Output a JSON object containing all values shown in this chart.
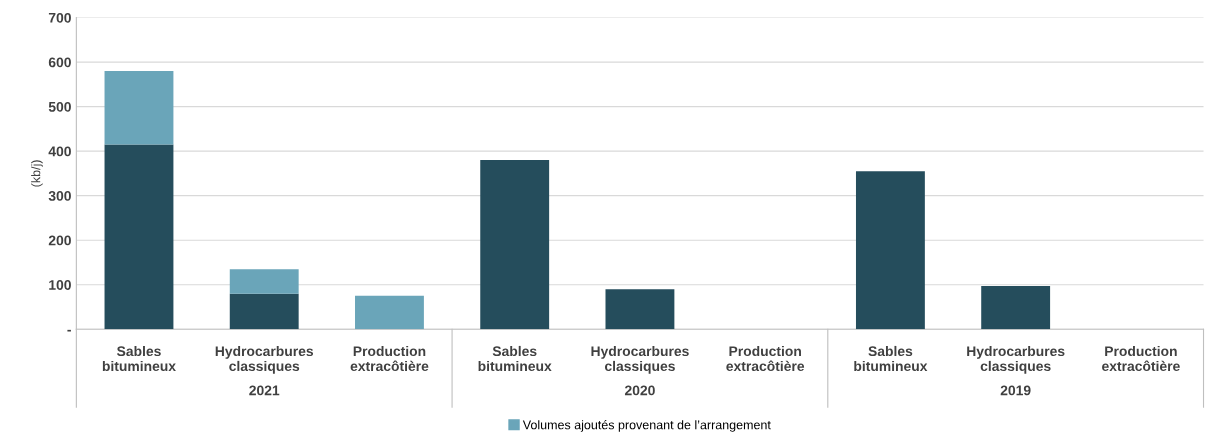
{
  "chart_data": {
    "type": "bar",
    "stacked": true,
    "ylabel": "(kb/j)",
    "categories": [
      "Sables bitumineux",
      "Hydrocarbures classiques",
      "Production extracôtière",
      "Sables bitumineux",
      "Hydrocarbures classiques",
      "Production extracôtière",
      "Sables bitumineux",
      "Hydrocarbures classiques",
      "Production extracôtière"
    ],
    "series": [
      {
        "color": "#254d5c",
        "values": [
          415,
          80,
          0,
          380,
          90,
          0,
          355,
          97,
          0
        ]
      },
      {
        "name": "Volumes ajoutés provenant de l’arrangement",
        "color": "#6aa5b9",
        "values": [
          165,
          55,
          75,
          0,
          0,
          0,
          0,
          0,
          0
        ]
      }
    ],
    "annotations": [
      "2021",
      "2020",
      "2019"
    ],
    "ylim": [
      0,
      700
    ],
    "yticks": [
      {
        "value": 0,
        "label": "-"
      },
      100,
      200,
      300,
      400,
      500,
      600,
      700
    ],
    "grid": "y",
    "legend": "bottom"
  }
}
